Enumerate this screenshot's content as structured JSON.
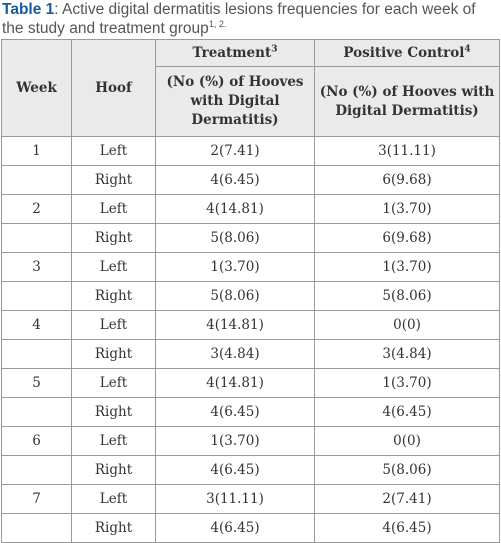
{
  "caption": {
    "label": "Table 1",
    "text": ": Active digital dermatitis lesions frequencies for each week of the study and treatment group",
    "refs": "1, 2."
  },
  "table": {
    "headers": {
      "week": "Week",
      "hoof": "Hoof",
      "treatment": "Treatment",
      "treatment_ref": "3",
      "positive_control": "Positive Control",
      "positive_control_ref": "4",
      "treatment_sub": "(No (%) of Hooves with Digital Dermatitis)",
      "positive_control_sub": "(No (%) of Hooves with Digital Dermatitis)"
    },
    "rows": [
      {
        "week": "1",
        "hoof": "Left",
        "treatment": "2(7.41)",
        "control": "3(11.11)"
      },
      {
        "week": "",
        "hoof": "Right",
        "treatment": "4(6.45)",
        "control": "6(9.68)"
      },
      {
        "week": "2",
        "hoof": "Left",
        "treatment": "4(14.81)",
        "control": "1(3.70)"
      },
      {
        "week": "",
        "hoof": "Right",
        "treatment": "5(8.06)",
        "control": "6(9.68)"
      },
      {
        "week": "3",
        "hoof": "Left",
        "treatment": "1(3.70)",
        "control": "1(3.70)"
      },
      {
        "week": "",
        "hoof": "Right",
        "treatment": "5(8.06)",
        "control": "5(8.06)"
      },
      {
        "week": "4",
        "hoof": "Left",
        "treatment": "4(14.81)",
        "control": "0(0)"
      },
      {
        "week": "",
        "hoof": "Right",
        "treatment": "3(4.84)",
        "control": "3(4.84)"
      },
      {
        "week": "5",
        "hoof": "Left",
        "treatment": "4(14.81)",
        "control": "1(3.70)"
      },
      {
        "week": "",
        "hoof": "Right",
        "treatment": "4(6.45)",
        "control": "4(6.45)"
      },
      {
        "week": "6",
        "hoof": "Left",
        "treatment": "1(3.70)",
        "control": "0(0)"
      },
      {
        "week": "",
        "hoof": "Right",
        "treatment": "4(6.45)",
        "control": "5(8.06)"
      },
      {
        "week": "7",
        "hoof": "Left",
        "treatment": "3(11.11)",
        "control": "2(7.41)"
      },
      {
        "week": "",
        "hoof": "Right",
        "treatment": "4(6.45)",
        "control": "4(6.45)"
      }
    ]
  },
  "colors": {
    "caption_label": "#1a5a9a",
    "caption_text": "#555555",
    "header_bg": "#eaeaea",
    "border": "#9a9a9a"
  }
}
